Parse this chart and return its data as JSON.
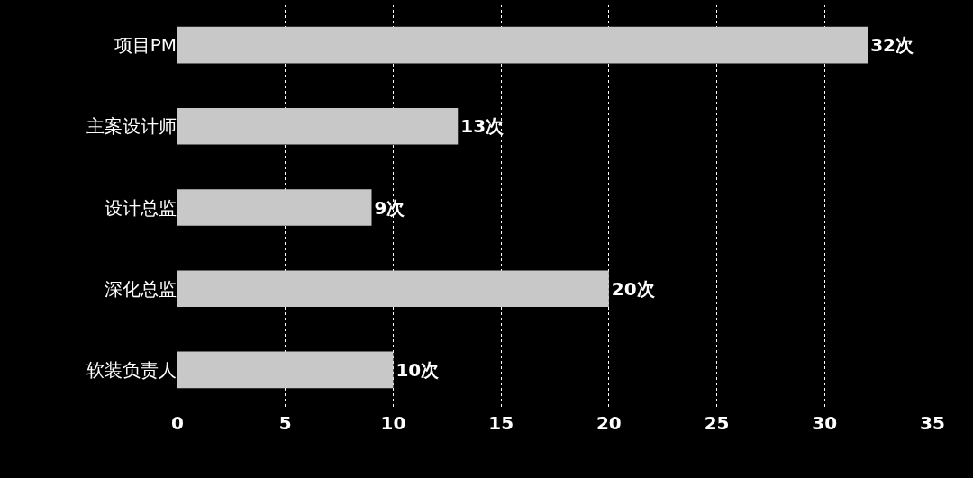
{
  "chart_data": {
    "type": "bar",
    "orientation": "horizontal",
    "categories": [
      "项目PM",
      "主案设计师",
      "设计总监",
      "深化总监",
      "软装负责人"
    ],
    "values": [
      32,
      13,
      9,
      20,
      10
    ],
    "value_labels": [
      "32次",
      "13次",
      "9次",
      "20次",
      "10次"
    ],
    "color": "#c8c8c8",
    "xlim": [
      0,
      35
    ],
    "xticks": [
      0,
      5,
      10,
      15,
      20,
      25,
      30,
      35
    ],
    "grid": "x"
  }
}
